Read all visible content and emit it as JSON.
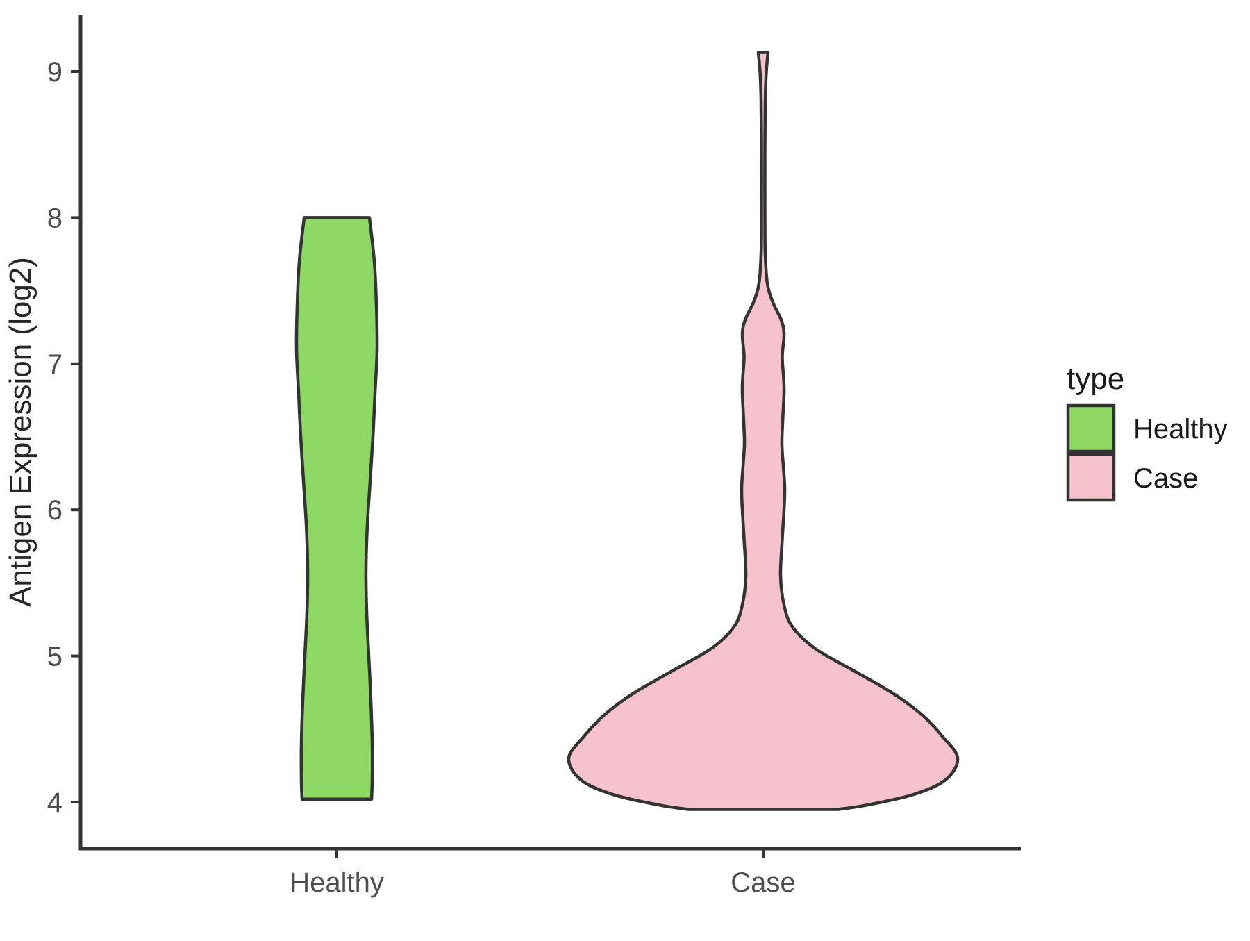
{
  "chart_data": {
    "type": "violin",
    "title": "",
    "xlabel": "",
    "ylabel": "Antigen Expression (log2)",
    "categories": [
      "Healthy",
      "Case"
    ],
    "y_ticks": [
      4,
      5,
      6,
      7,
      8,
      9
    ],
    "ylim": [
      3.7,
      9.4
    ],
    "grid": false,
    "outline_color": "#333333",
    "axis_color": "#333333",
    "tick_label_color": "#4d4d4d",
    "legend": {
      "title": "type",
      "position": "right",
      "entries": [
        {
          "label": "Healthy",
          "color": "#8CD863"
        },
        {
          "label": "Case",
          "color": "#F6C2CE"
        }
      ]
    },
    "series": [
      {
        "name": "Healthy",
        "fill": "#8CD863",
        "outline": "#333333",
        "min_value": 4.02,
        "max_value": 8.0,
        "halfwidth_units": "px",
        "profile_value_halfwidth": [
          [
            8.0,
            47
          ],
          [
            7.7,
            54
          ],
          [
            7.4,
            57
          ],
          [
            7.1,
            58
          ],
          [
            6.8,
            55
          ],
          [
            6.5,
            52
          ],
          [
            6.2,
            48
          ],
          [
            5.9,
            44
          ],
          [
            5.6,
            42
          ],
          [
            5.3,
            43
          ],
          [
            5.0,
            46
          ],
          [
            4.7,
            49
          ],
          [
            4.4,
            51
          ],
          [
            4.15,
            51
          ],
          [
            4.02,
            50
          ]
        ]
      },
      {
        "name": "Case",
        "fill": "#F6C2CE",
        "outline": "#333333",
        "min_value": 3.95,
        "max_value": 9.13,
        "halfwidth_units": "px",
        "profile_value_halfwidth": [
          [
            9.13,
            7
          ],
          [
            9.0,
            4.5
          ],
          [
            8.8,
            3
          ],
          [
            8.5,
            2.5
          ],
          [
            8.0,
            2.5
          ],
          [
            7.75,
            3
          ],
          [
            7.55,
            6
          ],
          [
            7.42,
            14
          ],
          [
            7.3,
            26
          ],
          [
            7.2,
            30
          ],
          [
            7.05,
            27.5
          ],
          [
            6.9,
            29.5
          ],
          [
            6.8,
            30
          ],
          [
            6.6,
            28
          ],
          [
            6.45,
            27
          ],
          [
            6.3,
            29
          ],
          [
            6.15,
            31
          ],
          [
            6.0,
            30
          ],
          [
            5.8,
            27.5
          ],
          [
            5.55,
            25
          ],
          [
            5.35,
            30
          ],
          [
            5.2,
            42
          ],
          [
            5.05,
            75
          ],
          [
            4.9,
            130
          ],
          [
            4.75,
            185
          ],
          [
            4.6,
            228
          ],
          [
            4.45,
            258
          ],
          [
            4.3,
            280
          ],
          [
            4.15,
            262
          ],
          [
            4.05,
            215
          ],
          [
            3.98,
            150
          ],
          [
            3.95,
            108
          ]
        ]
      }
    ]
  }
}
